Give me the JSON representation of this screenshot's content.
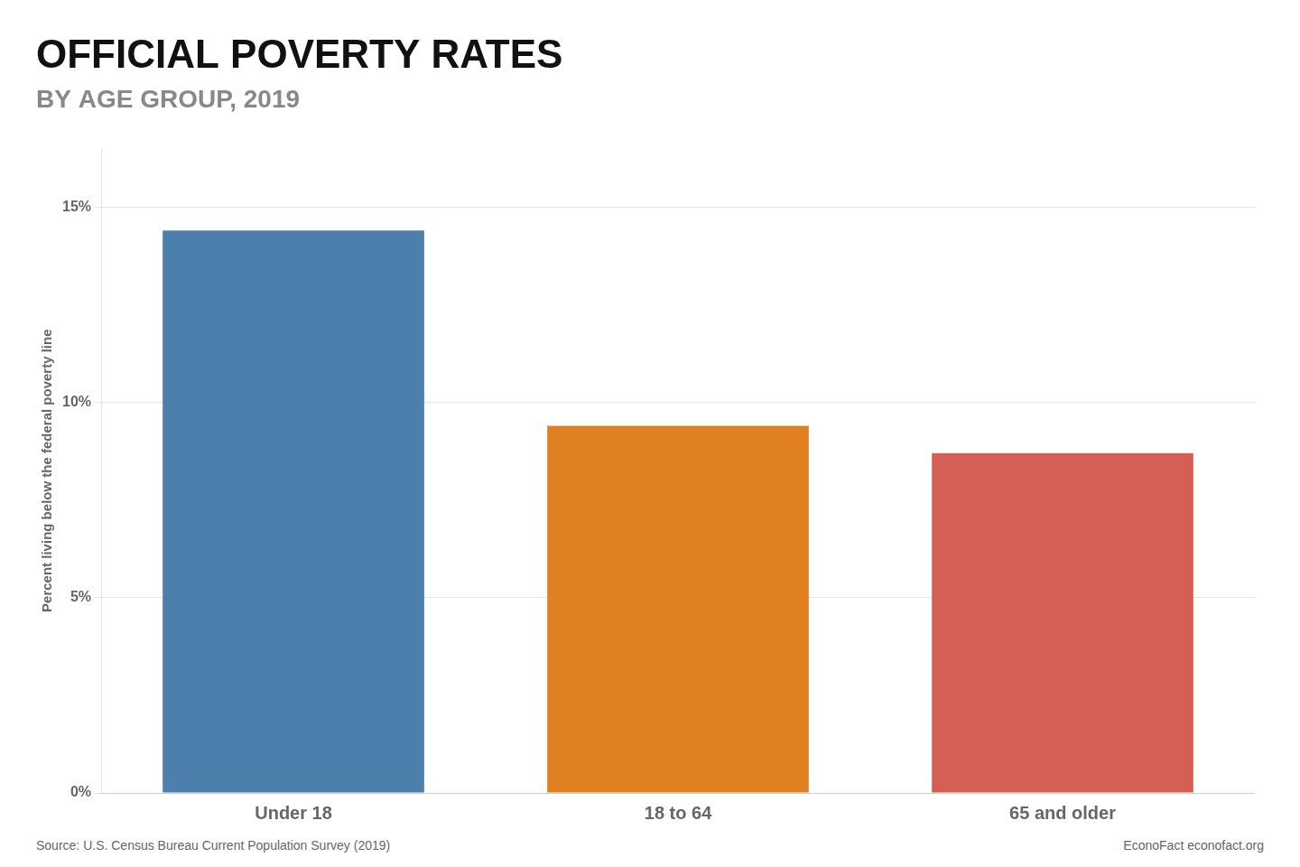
{
  "chart_data": {
    "type": "bar",
    "title": "OFFICIAL POVERTY RATES",
    "subtitle": "BY AGE GROUP, 2019",
    "categories": [
      "Under 18",
      "18 to 64",
      "65 and older"
    ],
    "values": [
      14.4,
      9.4,
      8.7
    ],
    "colors": [
      "#4d7fad",
      "#e08020",
      "#d45f55"
    ],
    "ylabel": "Percent living below the federal poverty line",
    "ylim": [
      0,
      16.5
    ],
    "yticks": [
      {
        "value": 0,
        "label": "0%"
      },
      {
        "value": 5,
        "label": "5%"
      },
      {
        "value": 10,
        "label": "10%"
      },
      {
        "value": 15,
        "label": "15%"
      }
    ],
    "grid": true,
    "annotations": [
      "Source: U.S. Census Bureau Current Population Survey (2019)",
      "EconoFact  econofact.org"
    ]
  }
}
